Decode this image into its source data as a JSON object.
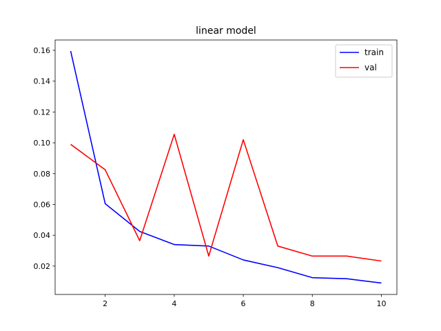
{
  "chart_data": {
    "type": "line",
    "title": "linear model",
    "xlabel": "",
    "ylabel": "",
    "xlim": [
      0.55,
      10.45
    ],
    "ylim": [
      0.0016,
      0.1667
    ],
    "xticks": [
      2,
      4,
      6,
      8,
      10
    ],
    "yticks": [
      0.02,
      0.04,
      0.06,
      0.08,
      0.1,
      0.12,
      0.14,
      0.16
    ],
    "ytick_labels": [
      "0.02",
      "0.04",
      "0.06",
      "0.08",
      "0.10",
      "0.12",
      "0.14",
      "0.16"
    ],
    "grid": false,
    "legend_position": "top-right",
    "x": [
      1,
      2,
      3,
      4,
      5,
      6,
      7,
      8,
      9,
      10
    ],
    "series": [
      {
        "name": "train",
        "color": "#0000ff",
        "values": [
          0.1595,
          0.0605,
          0.0425,
          0.034,
          0.033,
          0.024,
          0.019,
          0.0125,
          0.0118,
          0.009
        ]
      },
      {
        "name": "val",
        "color": "#ff0000",
        "values": [
          0.099,
          0.0825,
          0.0365,
          0.1055,
          0.0265,
          0.102,
          0.033,
          0.0265,
          0.0265,
          0.0233
        ]
      }
    ]
  }
}
